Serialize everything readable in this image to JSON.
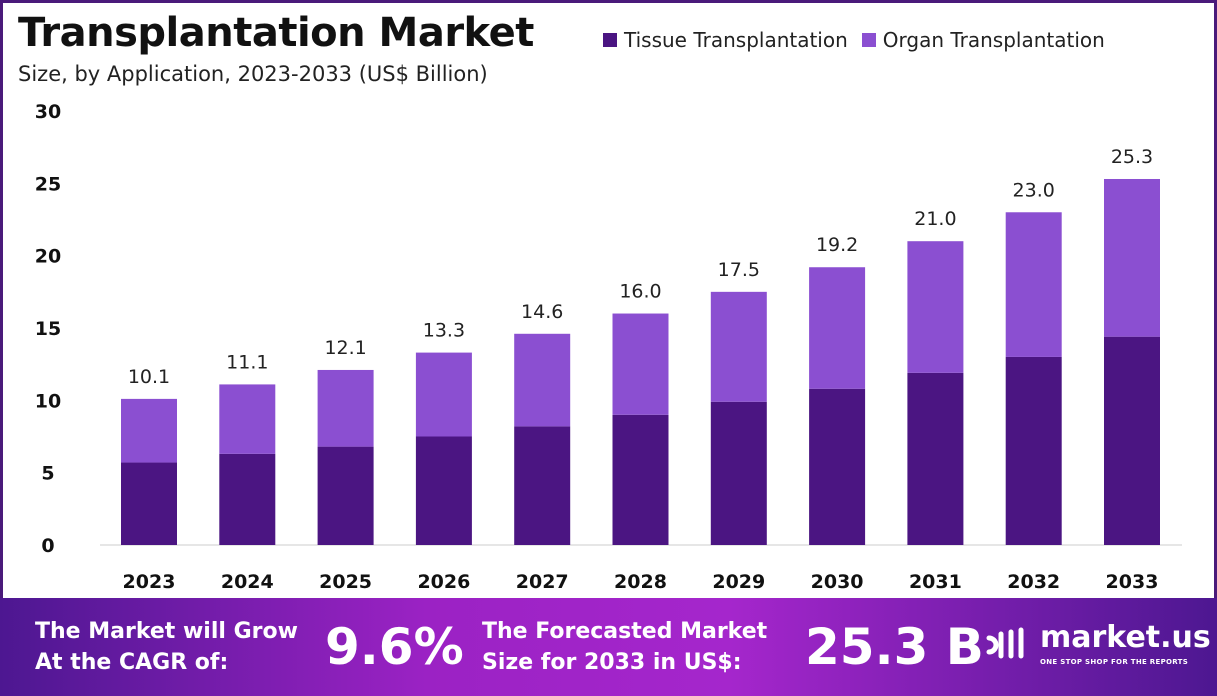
{
  "title": "Transplantation Market",
  "subtitle": "Size, by Application, 2023-2033 (US$ Billion)",
  "colors": {
    "tissue": "#4b1582",
    "organ": "#8b4fd1",
    "frame": "#4a1a7a"
  },
  "chart_data": {
    "type": "bar",
    "stacked": true,
    "title": "Transplantation Market",
    "subtitle": "Size, by Application, 2023-2033 (US$ Billion)",
    "categories": [
      "2023",
      "2024",
      "2025",
      "2026",
      "2027",
      "2028",
      "2029",
      "2030",
      "2031",
      "2032",
      "2033"
    ],
    "series": [
      {
        "name": "Tissue Transplantation",
        "values": [
          5.7,
          6.3,
          6.8,
          7.5,
          8.2,
          9.0,
          9.9,
          10.8,
          11.9,
          13.0,
          14.4
        ]
      },
      {
        "name": "Organ Transplantation",
        "values": [
          4.4,
          4.8,
          5.3,
          5.8,
          6.4,
          7.0,
          7.6,
          8.4,
          9.1,
          10.0,
          10.9
        ]
      }
    ],
    "totals": [
      "10.1",
      "11.1",
      "12.1",
      "13.3",
      "14.6",
      "16.0",
      "17.5",
      "19.2",
      "21.0",
      "23.0",
      "25.3"
    ],
    "ylim": [
      0,
      30
    ],
    "yticks": [
      "0",
      "5",
      "10",
      "15",
      "20",
      "25",
      "30"
    ],
    "grid": false,
    "legend": "top-right"
  },
  "footer": {
    "cagr_label": [
      "The Market will Grow",
      "At the CAGR of:"
    ],
    "cagr_value": "9.6%",
    "forecast_label": [
      "The Forecasted Market",
      "Size for 2033 in US$:"
    ],
    "forecast_value": "25.3 B",
    "logo": "market.us",
    "tagline": "ONE STOP SHOP FOR THE REPORTS"
  }
}
